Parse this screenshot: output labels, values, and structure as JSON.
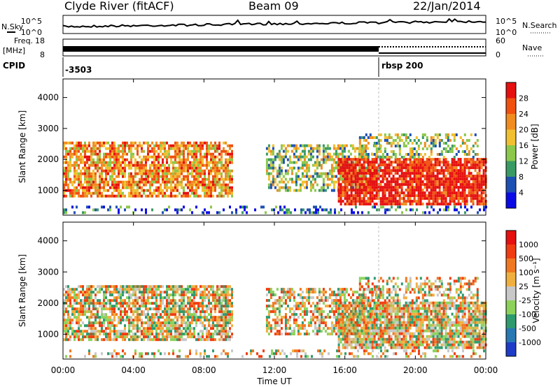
{
  "header": {
    "title": "Clyde River (fitACF)",
    "beam": "Beam 09",
    "date": "22/Jan/2014"
  },
  "top_panels": {
    "nsky_label": "N.Sky",
    "nsky_ticks": [
      "10^5",
      "10^0"
    ],
    "nsearch_label": "N.Search",
    "nsearch_ticks": [
      "10^5",
      "10^0"
    ],
    "freq_label": "Freq.",
    "freq_unit": "[MHz]",
    "freq_ticks": [
      "18",
      "8"
    ],
    "nave_label": "Nave",
    "nave_ticks": [
      "60",
      "0"
    ],
    "cpid_label": "CPID",
    "cpid_values": [
      "-3503",
      "rbsp 200"
    ]
  },
  "chart_data": [
    {
      "type": "heatmap",
      "name": "Power",
      "ylabel": "Slant Range [km]",
      "yticks": [
        1000,
        2000,
        3000,
        4000
      ],
      "ylim": [
        200,
        4600
      ],
      "colorbar_label": "Power [dB]",
      "colorbar_ticks": [
        "4",
        "8",
        "12",
        "16",
        "20",
        "24",
        "28"
      ],
      "colors": [
        "#0a0ae6",
        "#1e50b4",
        "#3a9a64",
        "#8cc84b",
        "#f0c030",
        "#f08c20",
        "#f05010",
        "#e61010"
      ]
    },
    {
      "type": "heatmap",
      "name": "Velocity",
      "ylabel": "Slant Range [km]",
      "yticks": [
        1000,
        2000,
        3000,
        4000
      ],
      "ylim": [
        200,
        4600
      ],
      "colorbar_label": "Velocity [m s⁻¹]",
      "colorbar_ticks": [
        "1000",
        "500",
        "100",
        "25",
        "-25",
        "-100",
        "-500",
        "-1000"
      ],
      "colors": [
        "#1e3cc8",
        "#2878b4",
        "#2e9a6e",
        "#8cd25a",
        "#c8c8c8",
        "#f0b040",
        "#f07820",
        "#f03c10",
        "#e61010"
      ]
    }
  ],
  "xaxis": {
    "label": "Time UT",
    "ticks": [
      "00:00",
      "04:00",
      "08:00",
      "12:00",
      "16:00",
      "20:00",
      "00:00"
    ]
  },
  "colors": {
    "axis": "#000000",
    "background": "#ffffff"
  }
}
